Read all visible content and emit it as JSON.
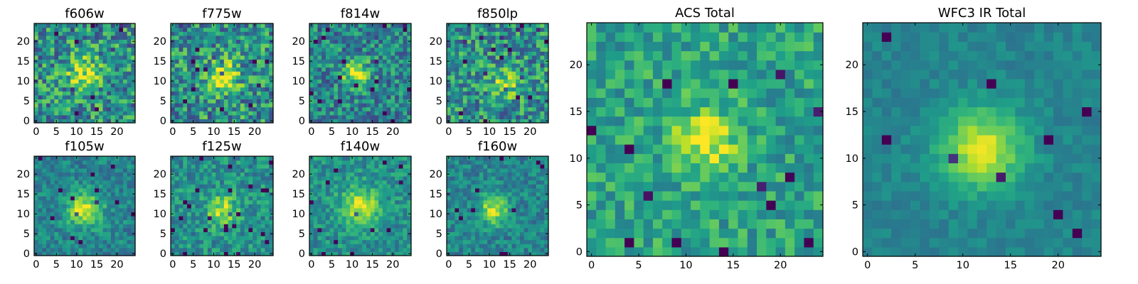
{
  "chart_data": [
    {
      "type": "heatmap",
      "title": "f606w",
      "xticks": [
        "0",
        "5",
        "10",
        "15",
        "20"
      ],
      "yticks": [
        "0",
        "5",
        "10",
        "15",
        "20"
      ],
      "xlim": [
        -0.5,
        24.5
      ],
      "ylim": [
        -0.5,
        24.5
      ],
      "grid": 25,
      "colormap": "viridis",
      "seed": 11,
      "source": {
        "x": 12,
        "y": 12,
        "sigma": 3.0,
        "amp": 0.4
      },
      "noise": 0.3,
      "base": 0.5
    },
    {
      "type": "heatmap",
      "title": "f775w",
      "xticks": [
        "0",
        "5",
        "10",
        "15",
        "20"
      ],
      "yticks": [
        "0",
        "5",
        "10",
        "15",
        "20"
      ],
      "xlim": [
        -0.5,
        24.5
      ],
      "ylim": [
        -0.5,
        24.5
      ],
      "grid": 25,
      "colormap": "viridis",
      "seed": 23,
      "source": {
        "x": 12,
        "y": 11,
        "sigma": 3.0,
        "amp": 0.45
      },
      "noise": 0.3,
      "base": 0.5
    },
    {
      "type": "heatmap",
      "title": "f814w",
      "xticks": [
        "0",
        "5",
        "10",
        "15",
        "20"
      ],
      "yticks": [
        "0",
        "5",
        "10",
        "15",
        "20"
      ],
      "xlim": [
        -0.5,
        24.5
      ],
      "ylim": [
        -0.5,
        24.5
      ],
      "grid": 25,
      "colormap": "viridis",
      "seed": 37,
      "source": {
        "x": 11,
        "y": 12,
        "sigma": 2.2,
        "amp": 0.55
      },
      "noise": 0.25,
      "base": 0.45
    },
    {
      "type": "heatmap",
      "title": "f850lp",
      "xticks": [
        "0",
        "5",
        "10",
        "15",
        "20"
      ],
      "yticks": [
        "0",
        "5",
        "10",
        "15",
        "20"
      ],
      "xlim": [
        -0.5,
        24.5
      ],
      "ylim": [
        -0.5,
        24.5
      ],
      "grid": 25,
      "colormap": "viridis",
      "seed": 41,
      "source": {
        "x": 14,
        "y": 9,
        "sigma": 2.5,
        "amp": 0.35
      },
      "noise": 0.28,
      "base": 0.5
    },
    {
      "type": "heatmap",
      "title": "f105w",
      "xticks": [
        "0",
        "5",
        "10",
        "15",
        "20"
      ],
      "yticks": [
        "0",
        "5",
        "10",
        "15",
        "20"
      ],
      "xlim": [
        -0.5,
        24.5
      ],
      "ylim": [
        -0.5,
        24.5
      ],
      "grid": 25,
      "colormap": "viridis",
      "seed": 53,
      "source": {
        "x": 12,
        "y": 11,
        "sigma": 3.0,
        "amp": 0.5
      },
      "noise": 0.15,
      "base": 0.45
    },
    {
      "type": "heatmap",
      "title": "f125w",
      "xticks": [
        "0",
        "5",
        "10",
        "15",
        "20"
      ],
      "yticks": [
        "0",
        "5",
        "10",
        "15",
        "20"
      ],
      "xlim": [
        -0.5,
        24.5
      ],
      "ylim": [
        -0.5,
        24.5
      ],
      "grid": 25,
      "colormap": "viridis",
      "seed": 67,
      "source": {
        "x": 12,
        "y": 11,
        "sigma": 2.6,
        "amp": 0.4
      },
      "noise": 0.18,
      "base": 0.5
    },
    {
      "type": "heatmap",
      "title": "f140w",
      "xticks": [
        "0",
        "5",
        "10",
        "15",
        "20"
      ],
      "yticks": [
        "0",
        "5",
        "10",
        "15",
        "20"
      ],
      "xlim": [
        -0.5,
        24.5
      ],
      "ylim": [
        -0.5,
        24.5
      ],
      "grid": 25,
      "colormap": "viridis",
      "seed": 79,
      "source": {
        "x": 12,
        "y": 12,
        "sigma": 3.2,
        "amp": 0.45
      },
      "noise": 0.16,
      "base": 0.5
    },
    {
      "type": "heatmap",
      "title": "f160w",
      "xticks": [
        "0",
        "5",
        "10",
        "15",
        "20"
      ],
      "yticks": [
        "0",
        "5",
        "10",
        "15",
        "20"
      ],
      "xlim": [
        -0.5,
        24.5
      ],
      "ylim": [
        -0.5,
        24.5
      ],
      "grid": 25,
      "colormap": "viridis",
      "seed": 97,
      "source": {
        "x": 11,
        "y": 11,
        "sigma": 2.4,
        "amp": 0.5
      },
      "noise": 0.15,
      "base": 0.45
    },
    {
      "type": "heatmap",
      "title": "ACS Total",
      "xticks": [
        "0",
        "5",
        "10",
        "15",
        "20"
      ],
      "yticks": [
        "0",
        "5",
        "10",
        "15",
        "20"
      ],
      "xlim": [
        -0.5,
        24.5
      ],
      "ylim": [
        -0.5,
        24.5
      ],
      "grid": 25,
      "colormap": "viridis",
      "seed": 131,
      "source": {
        "x": 12,
        "y": 12,
        "sigma": 2.3,
        "amp": 0.4
      },
      "noise": 0.18,
      "base": 0.58
    },
    {
      "type": "heatmap",
      "title": "WFC3 IR Total",
      "xticks": [
        "0",
        "5",
        "10",
        "15",
        "20"
      ],
      "yticks": [
        "0",
        "5",
        "10",
        "15",
        "20"
      ],
      "xlim": [
        -0.5,
        24.5
      ],
      "ylim": [
        -0.5,
        24.5
      ],
      "grid": 25,
      "colormap": "viridis",
      "seed": 149,
      "source": {
        "x": 12,
        "y": 11,
        "sigma": 3.0,
        "amp": 0.5
      },
      "noise": 0.07,
      "base": 0.45
    }
  ]
}
